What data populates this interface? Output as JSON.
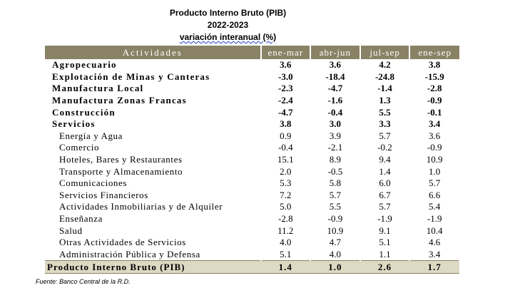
{
  "title": {
    "line1": "Producto Interno Bruto (PIB)",
    "line2": "2022-2023",
    "line3": "variación interanual (%)"
  },
  "table": {
    "headers": [
      "Actividades",
      "ene-mar",
      "abr-jun",
      "jul-sep",
      "ene-sep"
    ],
    "rows": [
      {
        "label": "Agropecuario",
        "values": [
          "3.6",
          "3.6",
          "4.2",
          "3.8"
        ],
        "level": "main"
      },
      {
        "label": "Explotación de Minas y Canteras",
        "values": [
          "-3.0",
          "-18.4",
          "-24.8",
          "-15.9"
        ],
        "level": "main"
      },
      {
        "label": "Manufactura Local",
        "values": [
          "-2.3",
          "-4.7",
          "-1.4",
          "-2.8"
        ],
        "level": "main"
      },
      {
        "label": "Manufactura Zonas Francas",
        "values": [
          "-2.4",
          "-1.6",
          "1.3",
          "-0.9"
        ],
        "level": "main"
      },
      {
        "label": "Construcción",
        "values": [
          "-4.7",
          "-0.4",
          "5.5",
          "-0.1"
        ],
        "level": "main"
      },
      {
        "label": "Servicios",
        "values": [
          "3.8",
          "3.0",
          "3.3",
          "3.4"
        ],
        "level": "main"
      },
      {
        "label": "Energía y Agua",
        "values": [
          "0.9",
          "3.9",
          "5.7",
          "3.6"
        ],
        "level": "sub"
      },
      {
        "label": "Comercio",
        "values": [
          "-0.4",
          "-2.1",
          "-0.2",
          "-0.9"
        ],
        "level": "sub"
      },
      {
        "label": "Hoteles, Bares y Restaurantes",
        "values": [
          "15.1",
          "8.9",
          "9.4",
          "10.9"
        ],
        "level": "sub"
      },
      {
        "label": "Transporte y Almacenamiento",
        "values": [
          "2.0",
          "-0.5",
          "1.4",
          "1.0"
        ],
        "level": "sub"
      },
      {
        "label": "Comunicaciones",
        "values": [
          "5.3",
          "5.8",
          "6.0",
          "5.7"
        ],
        "level": "sub"
      },
      {
        "label": "Servicios Financieros",
        "values": [
          "7.2",
          "5.7",
          "6.7",
          "6.6"
        ],
        "level": "sub"
      },
      {
        "label": "Actividades Inmobiliarias y de Alquiler",
        "values": [
          "5.0",
          "5.5",
          "5.7",
          "5.4"
        ],
        "level": "sub"
      },
      {
        "label": "Enseñanza",
        "values": [
          "-2.8",
          "-0.9",
          "-1.9",
          "-1.9"
        ],
        "level": "sub"
      },
      {
        "label": "Salud",
        "values": [
          "11.2",
          "10.9",
          "9.1",
          "10.4"
        ],
        "level": "sub"
      },
      {
        "label": "Otras Actividades de Servicios",
        "values": [
          "4.0",
          "4.7",
          "5.1",
          "4.6"
        ],
        "level": "sub"
      },
      {
        "label": "Administración Pública y Defensa",
        "values": [
          "5.1",
          "4.0",
          "1.1",
          "3.4"
        ],
        "level": "sub"
      }
    ],
    "total": {
      "label": "Producto Interno Bruto (PIB)",
      "values": [
        "1.4",
        "1.0",
        "2.6",
        "1.7"
      ]
    }
  },
  "source": "Fuente: Banco Central de la R.D.",
  "colors": {
    "header_bg": "#8a8266",
    "total_bg": "#ddd9c3"
  }
}
